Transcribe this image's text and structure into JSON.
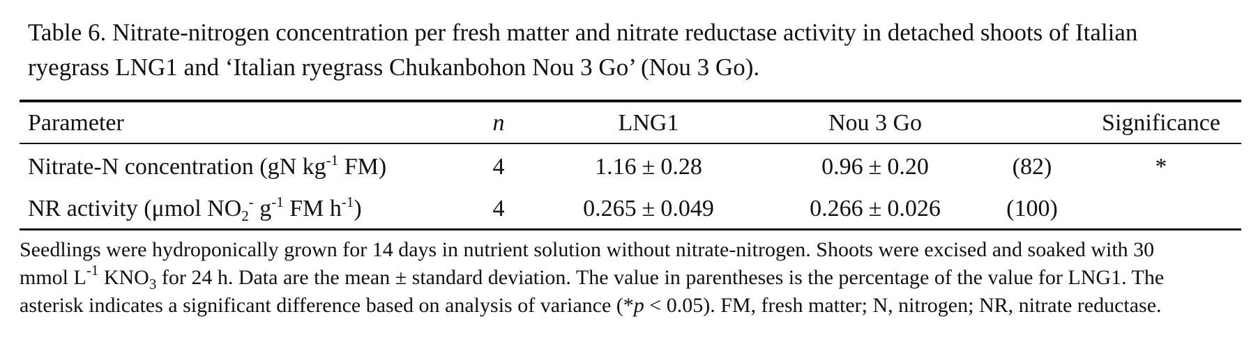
{
  "caption": {
    "line1": "Table 6.  Nitrate-nitrogen concentration per fresh matter and nitrate reductase activity in detached shoots of  Italian",
    "line2": "ryegrass LNG1 and ‘Italian ryegrass Chukanbohon Nou 3 Go’ (Nou 3 Go)."
  },
  "table": {
    "headers": {
      "parameter": "Parameter",
      "n": "n",
      "lng1": "LNG1",
      "nou3go": "Nou 3 Go",
      "significance": "Significance"
    },
    "rows": [
      {
        "param_prefix": "Nitrate-N concentration (gN kg",
        "param_sup1": "-1",
        "param_mid1": " FM)",
        "n": "4",
        "lng1_mean": "1.16",
        "lng1_sd": "0.28",
        "nou_mean": "0.96",
        "nou_sd": "0.20",
        "pct": "(82)",
        "sig": "*"
      },
      {
        "param_prefix": "NR activity (μmol NO",
        "param_sub": "2",
        "param_sup_a": "-",
        "param_mid_a": " g",
        "param_sup_b": "-1",
        "param_mid_b": " FM h",
        "param_sup_c": "-1",
        "param_end": ")",
        "n": "4",
        "lng1_mean": "0.265",
        "lng1_sd": "0.049",
        "nou_mean": "0.266",
        "nou_sd": "0.026",
        "pct": "(100)",
        "sig": ""
      }
    ],
    "pm_symbol": "±"
  },
  "notes": {
    "line1": "Seedlings were hydroponically grown for 14 days in nutrient solution without nitrate-nitrogen. Shoots were excised and soaked with 30",
    "line2_a": "mmol L",
    "line2_sup": "-1",
    "line2_b": " KNO",
    "line2_sub": "3",
    "line2_c": " for 24 h. Data are the mean ± standard deviation. The value in parentheses is the percentage of  the value for LNG1. The",
    "line3_a": "asterisk indicates a significant difference based on analysis of  variance (*",
    "line3_p": "p",
    "line3_b": " < 0.05). FM, fresh matter; N, nitrogen; NR, nitrate reductase."
  }
}
